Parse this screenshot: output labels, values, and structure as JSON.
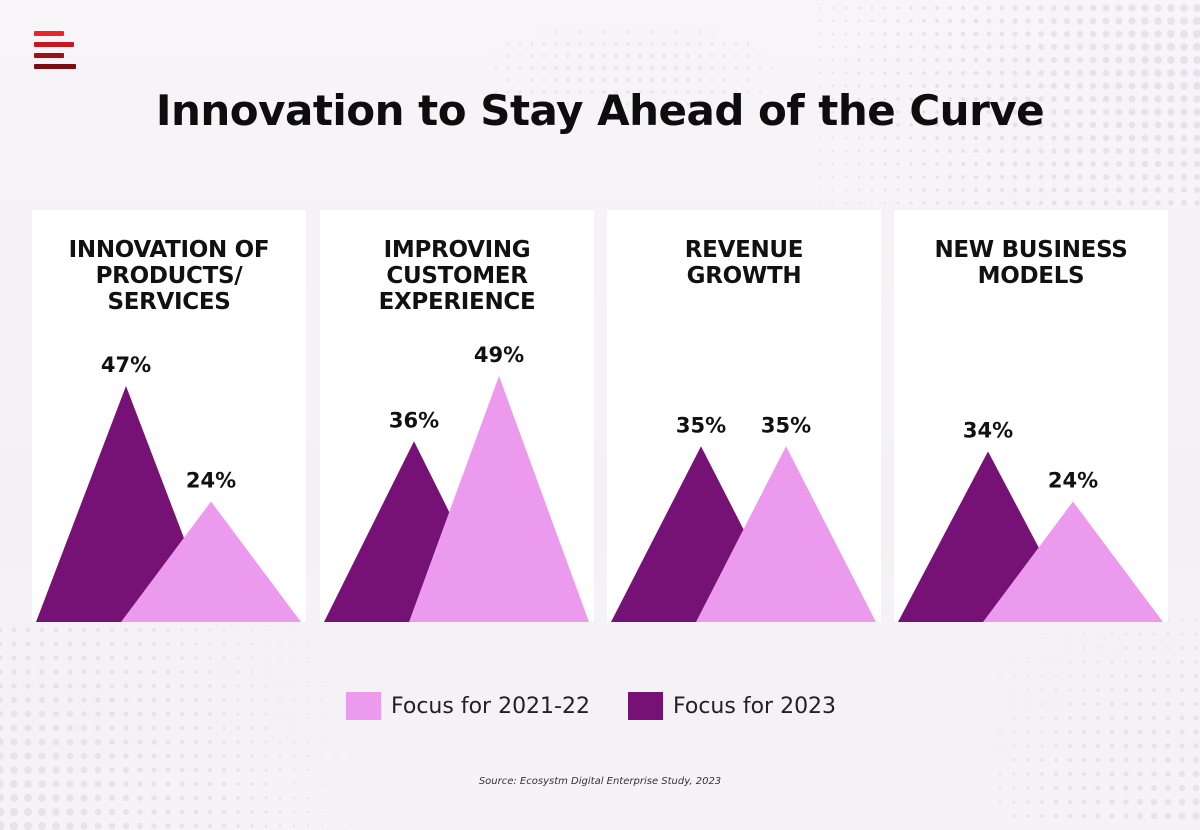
{
  "title": "Innovation to Stay Ahead of the Curve",
  "logo": {
    "name": "ecosystm-logo",
    "colors": [
      "#e8262b",
      "#c7161d",
      "#9c1016",
      "#7a0c10"
    ]
  },
  "colors": {
    "focus_2021_22": "#eb9aee",
    "focus_2023": "#761175"
  },
  "chart_data": {
    "type": "area",
    "shape": "triangle-peaks",
    "title": "Innovation to Stay Ahead of the Curve",
    "categories": [
      "INNOVATION OF PRODUCTS/ SERVICES",
      "IMPROVING CUSTOMER EXPERIENCE",
      "REVENUE GROWTH",
      "NEW BUSINESS MODELS"
    ],
    "series": [
      {
        "name": "Focus for 2023",
        "color": "#761175",
        "values": [
          47,
          36,
          35,
          34
        ]
      },
      {
        "name": "Focus for 2021-22",
        "color": "#eb9aee",
        "values": [
          24,
          49,
          35,
          24
        ]
      }
    ],
    "value_labels": {
      "focus_2023": [
        "47%",
        "36%",
        "35%",
        "34%"
      ],
      "focus_2021_22": [
        "24%",
        "49%",
        "35%",
        "24%"
      ]
    },
    "ylim": [
      0,
      60
    ],
    "legend_position": "bottom-center",
    "grid": false
  },
  "panels": [
    {
      "title": "INNOVATION OF\nPRODUCTS/\nSERVICES"
    },
    {
      "title": "IMPROVING\nCUSTOMER\nEXPERIENCE"
    },
    {
      "title": "REVENUE\nGROWTH"
    },
    {
      "title": "NEW BUSINESS\nMODELS"
    }
  ],
  "legend": {
    "items": [
      {
        "label": "Focus for 2021-22",
        "color": "#eb9aee"
      },
      {
        "label": "Focus for 2023",
        "color": "#761175"
      }
    ]
  },
  "source": "Source: Ecosystm Digital Enterprise Study, 2023"
}
